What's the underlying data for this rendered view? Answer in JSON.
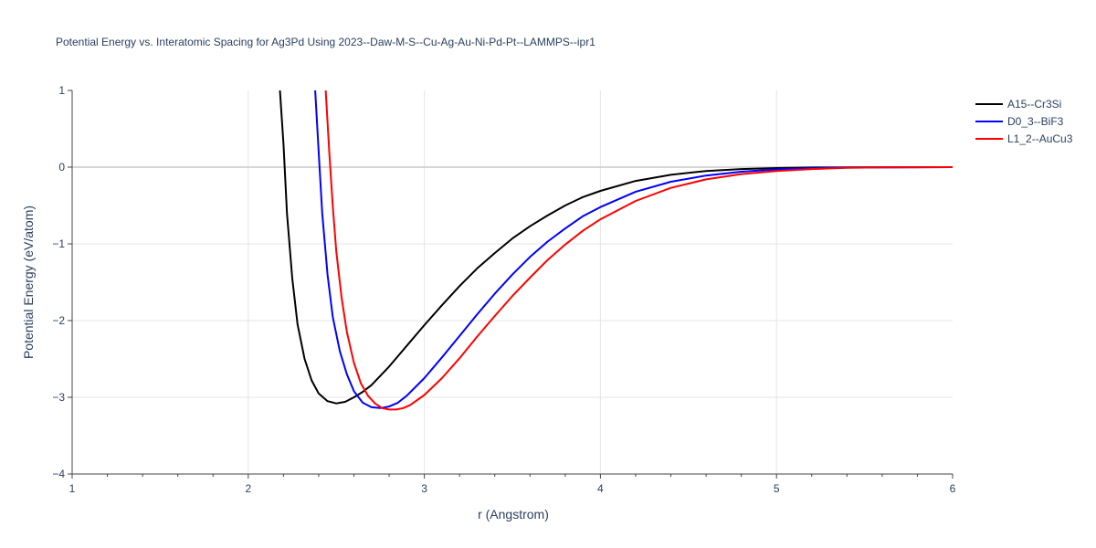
{
  "chart_data": {
    "type": "line",
    "title": "Potential Energy vs. Interatomic Spacing for Ag3Pd Using 2023--Daw-M-S--Cu-Ag-Au-Ni-Pd-Pt--LAMMPS--ipr1",
    "xlabel": "r (Angstrom)",
    "ylabel": "Potential Energy (eV/atom)",
    "xlim": [
      1,
      6
    ],
    "ylim": [
      -4,
      1
    ],
    "x_ticks": [
      "1",
      "2",
      "3",
      "4",
      "5",
      "6"
    ],
    "y_ticks": [
      "1",
      "0",
      "−1",
      "−2",
      "−3",
      "−4"
    ],
    "grid": true,
    "legend_position": "top-right",
    "series": [
      {
        "name": "A15--Cr3Si",
        "color": "#000000",
        "x": [
          2.18,
          2.2,
          2.22,
          2.25,
          2.28,
          2.32,
          2.36,
          2.4,
          2.45,
          2.5,
          2.55,
          2.6,
          2.65,
          2.7,
          2.8,
          2.9,
          3.0,
          3.1,
          3.2,
          3.3,
          3.4,
          3.5,
          3.6,
          3.7,
          3.8,
          3.9,
          4.0,
          4.2,
          4.4,
          4.6,
          4.8,
          5.0,
          5.2,
          5.4,
          5.6,
          6.0
        ],
        "y": [
          1.0,
          0.3,
          -0.6,
          -1.45,
          -2.05,
          -2.5,
          -2.78,
          -2.95,
          -3.05,
          -3.08,
          -3.06,
          -3.0,
          -2.93,
          -2.84,
          -2.6,
          -2.33,
          -2.06,
          -1.8,
          -1.55,
          -1.32,
          -1.12,
          -0.93,
          -0.77,
          -0.63,
          -0.5,
          -0.39,
          -0.31,
          -0.18,
          -0.1,
          -0.05,
          -0.025,
          -0.012,
          -0.005,
          -0.002,
          -0.001,
          0.0
        ]
      },
      {
        "name": "D0_3--BiF3",
        "color": "#0000ff",
        "x": [
          2.38,
          2.4,
          2.42,
          2.45,
          2.48,
          2.52,
          2.56,
          2.6,
          2.65,
          2.7,
          2.75,
          2.8,
          2.85,
          2.9,
          3.0,
          3.1,
          3.2,
          3.3,
          3.4,
          3.5,
          3.6,
          3.7,
          3.8,
          3.9,
          4.0,
          4.2,
          4.4,
          4.6,
          4.8,
          5.0,
          5.2,
          5.4,
          5.6,
          6.0
        ],
        "y": [
          1.0,
          0.2,
          -0.6,
          -1.4,
          -1.95,
          -2.4,
          -2.7,
          -2.92,
          -3.07,
          -3.13,
          -3.14,
          -3.12,
          -3.07,
          -2.98,
          -2.75,
          -2.48,
          -2.2,
          -1.92,
          -1.65,
          -1.4,
          -1.17,
          -0.97,
          -0.8,
          -0.64,
          -0.52,
          -0.32,
          -0.19,
          -0.11,
          -0.06,
          -0.03,
          -0.013,
          -0.005,
          -0.002,
          0.0
        ]
      },
      {
        "name": "L1_2--AuCu3",
        "color": "#ff0000",
        "x": [
          2.44,
          2.46,
          2.48,
          2.5,
          2.53,
          2.56,
          2.6,
          2.64,
          2.68,
          2.72,
          2.76,
          2.8,
          2.84,
          2.88,
          2.92,
          3.0,
          3.1,
          3.2,
          3.3,
          3.4,
          3.5,
          3.6,
          3.7,
          3.8,
          3.9,
          4.0,
          4.2,
          4.4,
          4.6,
          4.8,
          5.0,
          5.2,
          5.4,
          5.6,
          6.0
        ],
        "y": [
          1.0,
          0.2,
          -0.5,
          -1.1,
          -1.7,
          -2.15,
          -2.55,
          -2.82,
          -2.98,
          -3.08,
          -3.14,
          -3.16,
          -3.16,
          -3.14,
          -3.1,
          -2.97,
          -2.75,
          -2.49,
          -2.21,
          -1.94,
          -1.68,
          -1.44,
          -1.21,
          -1.01,
          -0.83,
          -0.68,
          -0.44,
          -0.27,
          -0.16,
          -0.09,
          -0.05,
          -0.025,
          -0.01,
          -0.004,
          0.0
        ]
      }
    ]
  }
}
